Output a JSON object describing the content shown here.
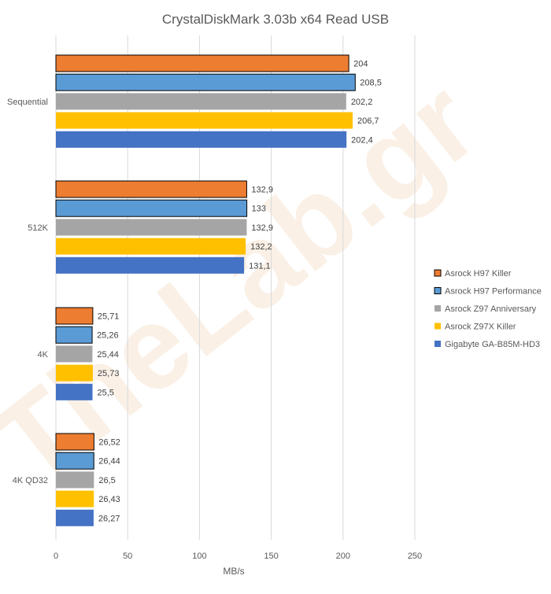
{
  "chart_data": {
    "type": "bar",
    "orientation": "horizontal",
    "title": "CrystalDiskMark 3.03b x64 Read USB",
    "xlabel": "MB/s",
    "ylabel": "",
    "xlim": [
      0,
      250
    ],
    "xticks": [
      0,
      50,
      100,
      150,
      200,
      250
    ],
    "grid": true,
    "legend_position": "right",
    "categories": [
      "Sequential",
      "512K",
      "4K",
      "4K QD32"
    ],
    "series": [
      {
        "name": "Asrock H97 Killer",
        "color": "#ED7D31",
        "outlined": true,
        "values": [
          204,
          132.9,
          25.71,
          26.52
        ],
        "labels": [
          "204",
          "132,9",
          "25,71",
          "26,52"
        ]
      },
      {
        "name": "Asrock H97 Performance",
        "color": "#5B9BD5",
        "outlined": true,
        "values": [
          208.5,
          133,
          25.26,
          26.44
        ],
        "labels": [
          "208,5",
          "133",
          "25,26",
          "26,44"
        ]
      },
      {
        "name": "Asrock Z97 Anniversary",
        "color": "#A5A5A5",
        "outlined": false,
        "values": [
          202.2,
          132.9,
          25.44,
          26.5
        ],
        "labels": [
          "202,2",
          "132,9",
          "25,44",
          "26,5"
        ]
      },
      {
        "name": "Asrock Z97X Killer",
        "color": "#FFC000",
        "outlined": false,
        "values": [
          206.7,
          132.2,
          25.73,
          26.43
        ],
        "labels": [
          "206,7",
          "132,2",
          "25,73",
          "26,43"
        ]
      },
      {
        "name": "Gigabyte GA-B85M-HD3",
        "color": "#4472C4",
        "outlined": false,
        "values": [
          202.4,
          131.1,
          25.5,
          26.27
        ],
        "labels": [
          "202,4",
          "131,1",
          "25,5",
          "26,27"
        ]
      }
    ]
  },
  "watermark": "TheLab.gr"
}
